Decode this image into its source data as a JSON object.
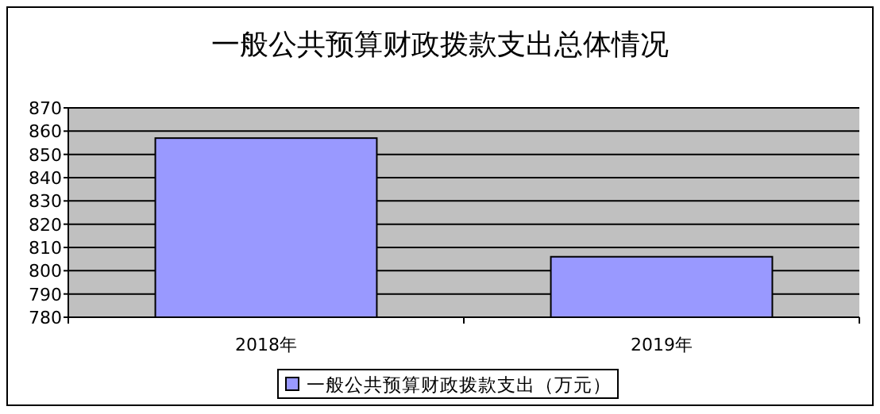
{
  "chart_data": {
    "type": "bar",
    "title": "一般公共预算财政拨款支出总体情况",
    "categories": [
      "2018年",
      "2019年"
    ],
    "series": [
      {
        "name": "一般公共预算财政拨款支出（万元）",
        "color": "#9999ff",
        "values": [
          857,
          806
        ]
      }
    ],
    "ylim": [
      780,
      870
    ],
    "yticks": [
      780,
      790,
      800,
      810,
      820,
      830,
      840,
      850,
      860,
      870
    ],
    "grid": "y",
    "legend": "bottom"
  }
}
